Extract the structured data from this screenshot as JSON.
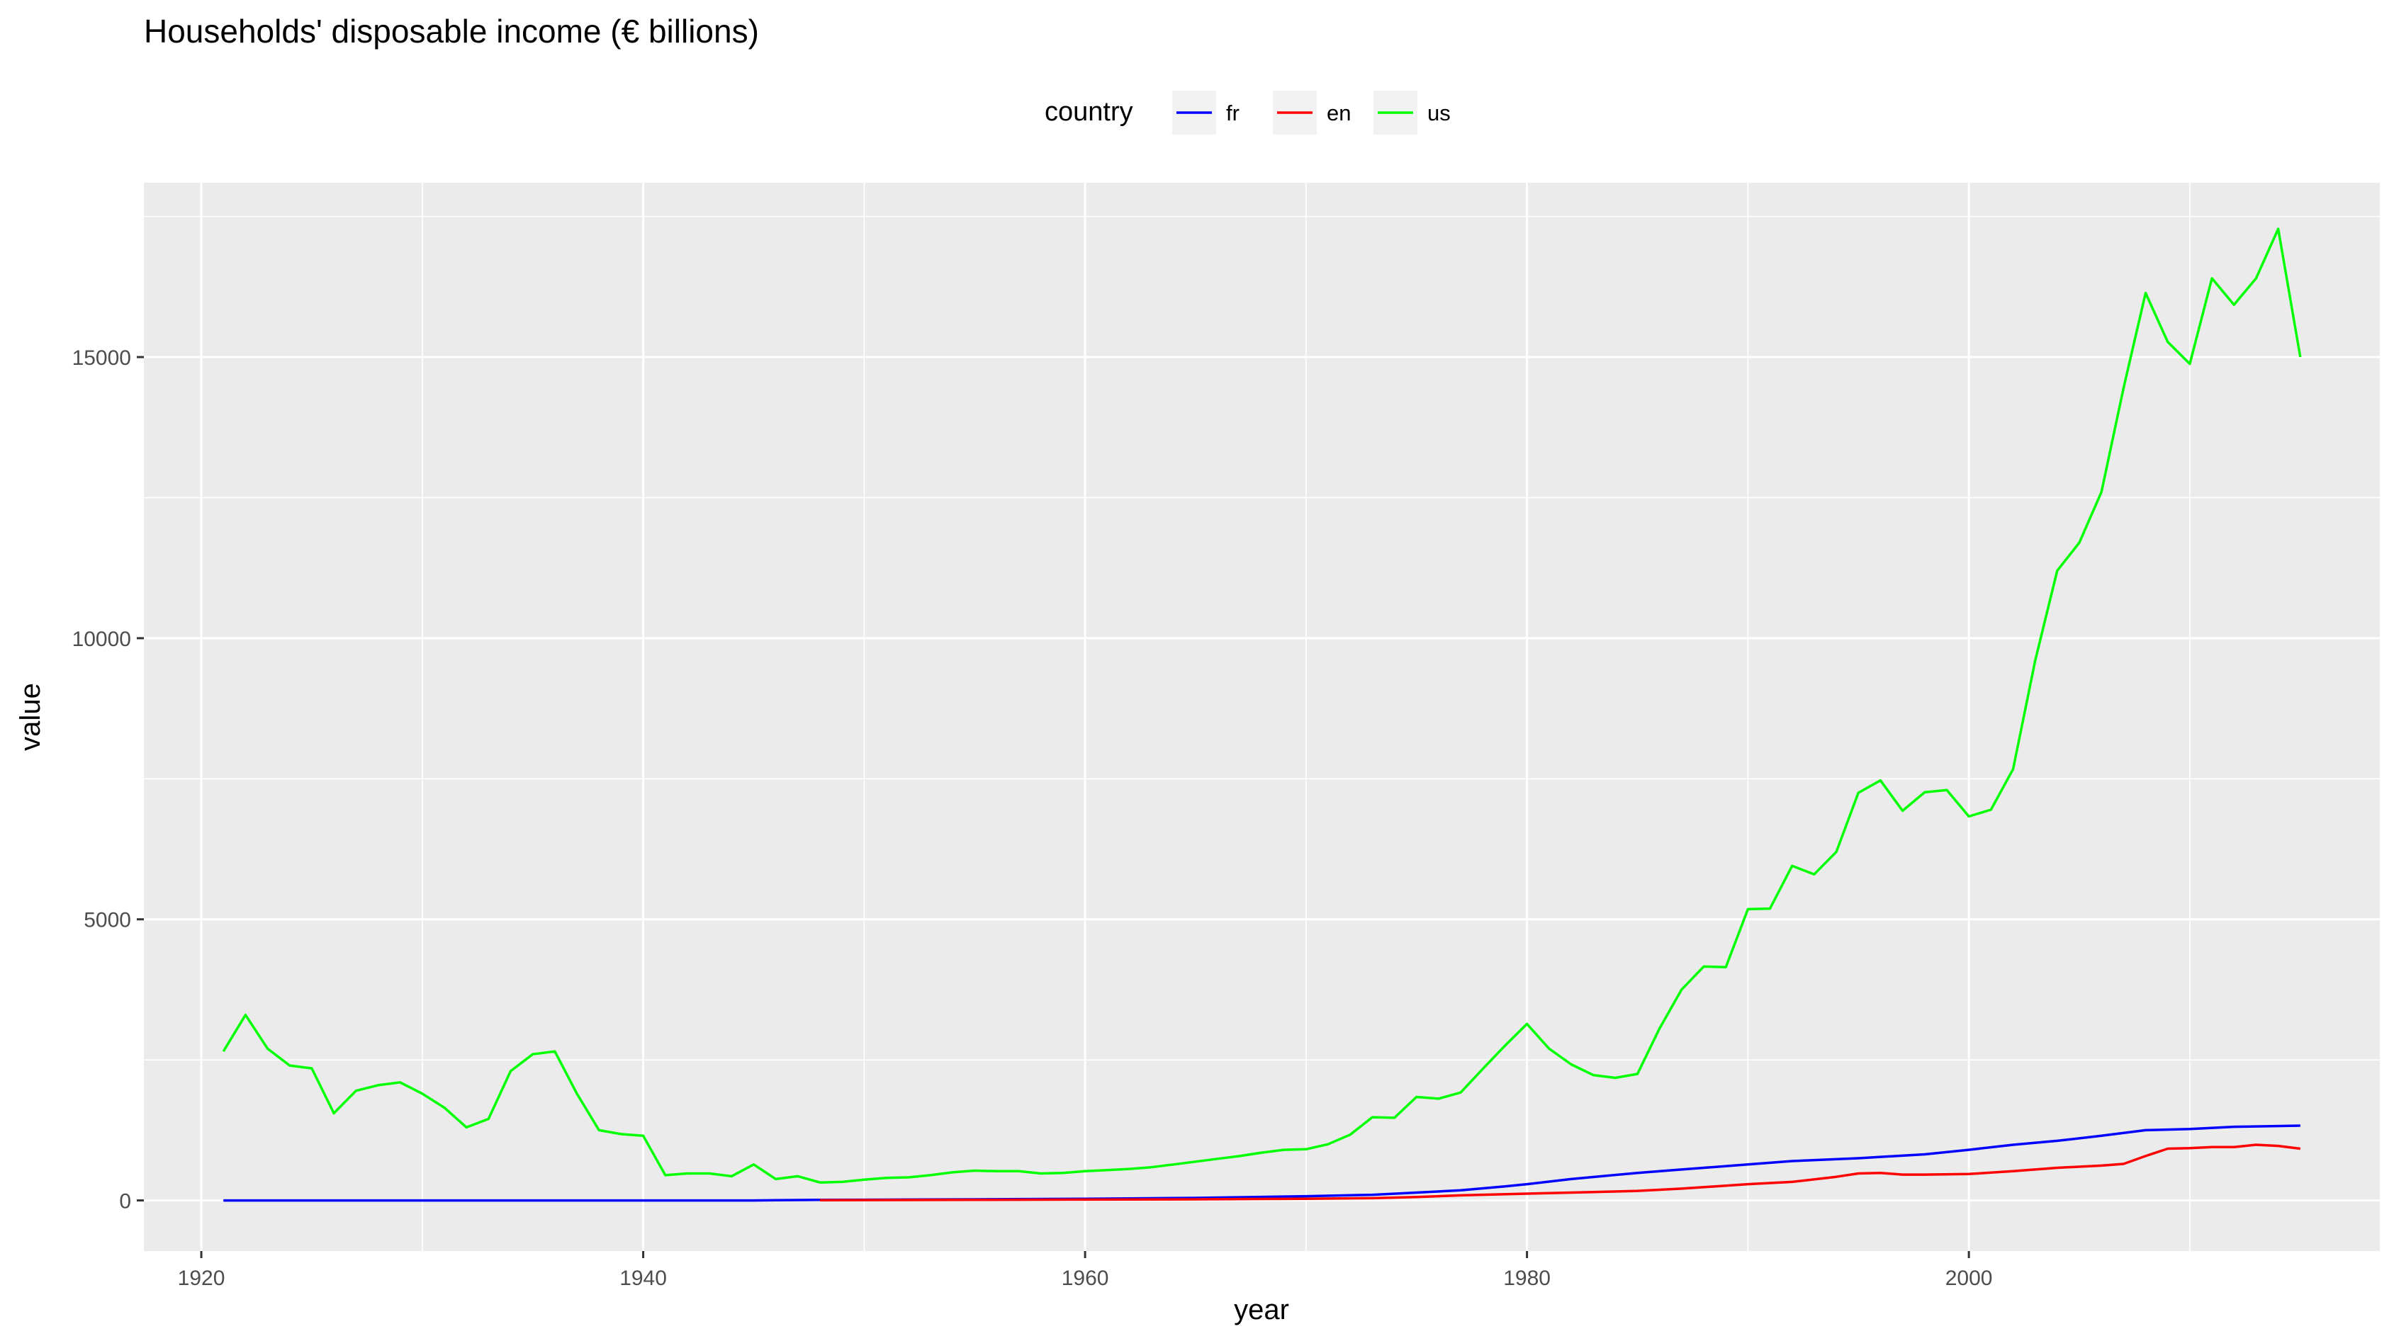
{
  "chart_data": {
    "type": "line",
    "title": "Households' disposable income (€ billions)",
    "xlabel": "year",
    "ylabel": "value",
    "xlim": [
      1917.4,
      2018.6
    ],
    "ylim": [
      -900,
      18100
    ],
    "x_ticks": [
      1920,
      1940,
      1960,
      1980,
      2000
    ],
    "y_ticks": [
      0,
      5000,
      10000,
      15000
    ],
    "grid": true,
    "legend": {
      "title": "country",
      "position": "top"
    },
    "series": [
      {
        "name": "fr",
        "color": "#0000ff",
        "x": [
          1921,
          1925,
          1930,
          1935,
          1940,
          1945,
          1946,
          1948,
          1950,
          1955,
          1960,
          1965,
          1970,
          1973,
          1975,
          1977,
          1979,
          1980,
          1982,
          1985,
          1987,
          1990,
          1992,
          1995,
          1998,
          2000,
          2002,
          2004,
          2006,
          2008,
          2010,
          2012,
          2015
        ],
        "y": [
          0,
          0,
          0,
          0,
          0,
          0,
          5,
          10,
          12,
          20,
          30,
          45,
          75,
          100,
          140,
          180,
          250,
          290,
          380,
          490,
          550,
          640,
          700,
          750,
          820,
          900,
          990,
          1060,
          1150,
          1250,
          1270,
          1310,
          1330
        ]
      },
      {
        "name": "en",
        "color": "#ff0000",
        "x": [
          1948,
          1955,
          1960,
          1965,
          1970,
          1973,
          1975,
          1977,
          1980,
          1983,
          1985,
          1987,
          1990,
          1992,
          1994,
          1995,
          1996,
          1997,
          1998,
          2000,
          2002,
          2004,
          2006,
          2007,
          2008,
          2009,
          2010,
          2011,
          2012,
          2013,
          2014,
          2015
        ],
        "y": [
          5,
          10,
          15,
          20,
          30,
          40,
          60,
          90,
          120,
          150,
          170,
          210,
          290,
          330,
          420,
          480,
          490,
          460,
          460,
          470,
          520,
          580,
          620,
          650,
          790,
          920,
          930,
          950,
          950,
          990,
          970,
          920
        ]
      },
      {
        "name": "us",
        "color": "#00ff00",
        "x": [
          1921,
          1922,
          1923,
          1924,
          1925,
          1926,
          1927,
          1928,
          1929,
          1930,
          1931,
          1932,
          1933,
          1934,
          1935,
          1936,
          1937,
          1938,
          1939,
          1940,
          1941,
          1942,
          1943,
          1944,
          1945,
          1946,
          1947,
          1948,
          1949,
          1950,
          1951,
          1952,
          1953,
          1954,
          1955,
          1956,
          1957,
          1958,
          1959,
          1960,
          1961,
          1962,
          1963,
          1964,
          1965,
          1966,
          1967,
          1968,
          1969,
          1970,
          1971,
          1972,
          1973,
          1974,
          1975,
          1976,
          1977,
          1978,
          1979,
          1980,
          1981,
          1982,
          1983,
          1984,
          1985,
          1986,
          1987,
          1988,
          1989,
          1990,
          1991,
          1992,
          1993,
          1994,
          1995,
          1996,
          1997,
          1998,
          1999,
          2000,
          2001,
          2002,
          2003,
          2004,
          2005,
          2006,
          2007,
          2008,
          2009,
          2010,
          2011,
          2012,
          2013,
          2014,
          2015
        ],
        "y": [
          2650,
          3300,
          2700,
          2400,
          2350,
          1550,
          1950,
          2050,
          2100,
          1900,
          1650,
          1300,
          1450,
          2300,
          2600,
          2650,
          1900,
          1250,
          1180,
          1150,
          450,
          480,
          480,
          430,
          640,
          380,
          430,
          320,
          330,
          370,
          400,
          410,
          450,
          500,
          530,
          520,
          520,
          480,
          490,
          520,
          540,
          560,
          590,
          640,
          690,
          740,
          790,
          850,
          900,
          910,
          1000,
          1170,
          1480,
          1470,
          1840,
          1810,
          1920,
          2340,
          2750,
          3140,
          2700,
          2420,
          2230,
          2180,
          2250,
          3060,
          3750,
          4160,
          4150,
          5180,
          5190,
          5950,
          5800,
          6200,
          7250,
          7470,
          6930,
          7260,
          7300,
          6830,
          6950,
          7670,
          9600,
          11200,
          11700,
          12600,
          14450,
          16140,
          15270,
          14880,
          16400,
          15930,
          16400,
          17280,
          15000
        ]
      }
    ]
  }
}
